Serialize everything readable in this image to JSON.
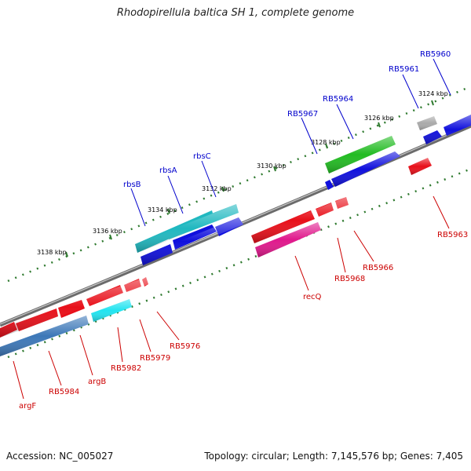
{
  "title": "Rhodopirellula baltica SH 1, complete genome",
  "footer": {
    "accession": "Accession: NC_005027",
    "summary": "Topology: circular; Length: 7,145,576 bp; Genes: 7,405"
  },
  "colors": {
    "blue_label": "#0000cc",
    "red_label": "#cc0000",
    "backbone": "#6b6b6b",
    "tick": "#2f7a2f"
  },
  "ticks": {
    "upper": [
      {
        "label": "3138 kbp"
      },
      {
        "label": "3136 kbp"
      },
      {
        "label": "3134 kbp"
      },
      {
        "label": "3132 kbp"
      },
      {
        "label": "3130 kbp"
      },
      {
        "label": "3128 kbp"
      },
      {
        "label": "3126 kbp"
      },
      {
        "label": "3124 kbp"
      }
    ]
  },
  "genes_top": [
    {
      "name": "rbsB",
      "color": "#0000cc"
    },
    {
      "name": "rbsA",
      "color": "#0000cc"
    },
    {
      "name": "rbsC",
      "color": "#0000cc"
    },
    {
      "name": "RB5967",
      "color": "#0000cc"
    },
    {
      "name": "RB5964",
      "color": "#0000cc"
    },
    {
      "name": "RB5961",
      "color": "#0000cc"
    },
    {
      "name": "RB5960",
      "color": "#0000cc"
    }
  ],
  "genes_bottom": [
    {
      "name": "argF",
      "color": "#cc0000"
    },
    {
      "name": "RB5984",
      "color": "#cc0000"
    },
    {
      "name": "argB",
      "color": "#cc0000"
    },
    {
      "name": "RB5982",
      "color": "#cc0000"
    },
    {
      "name": "RB5979",
      "color": "#cc0000"
    },
    {
      "name": "RB5976",
      "color": "#cc0000"
    },
    {
      "name": "recQ",
      "color": "#cc0000"
    },
    {
      "name": "RB5968",
      "color": "#cc0000"
    },
    {
      "name": "RB5966",
      "color": "#cc0000"
    },
    {
      "name": "RB5963",
      "color": "#cc0000"
    }
  ]
}
